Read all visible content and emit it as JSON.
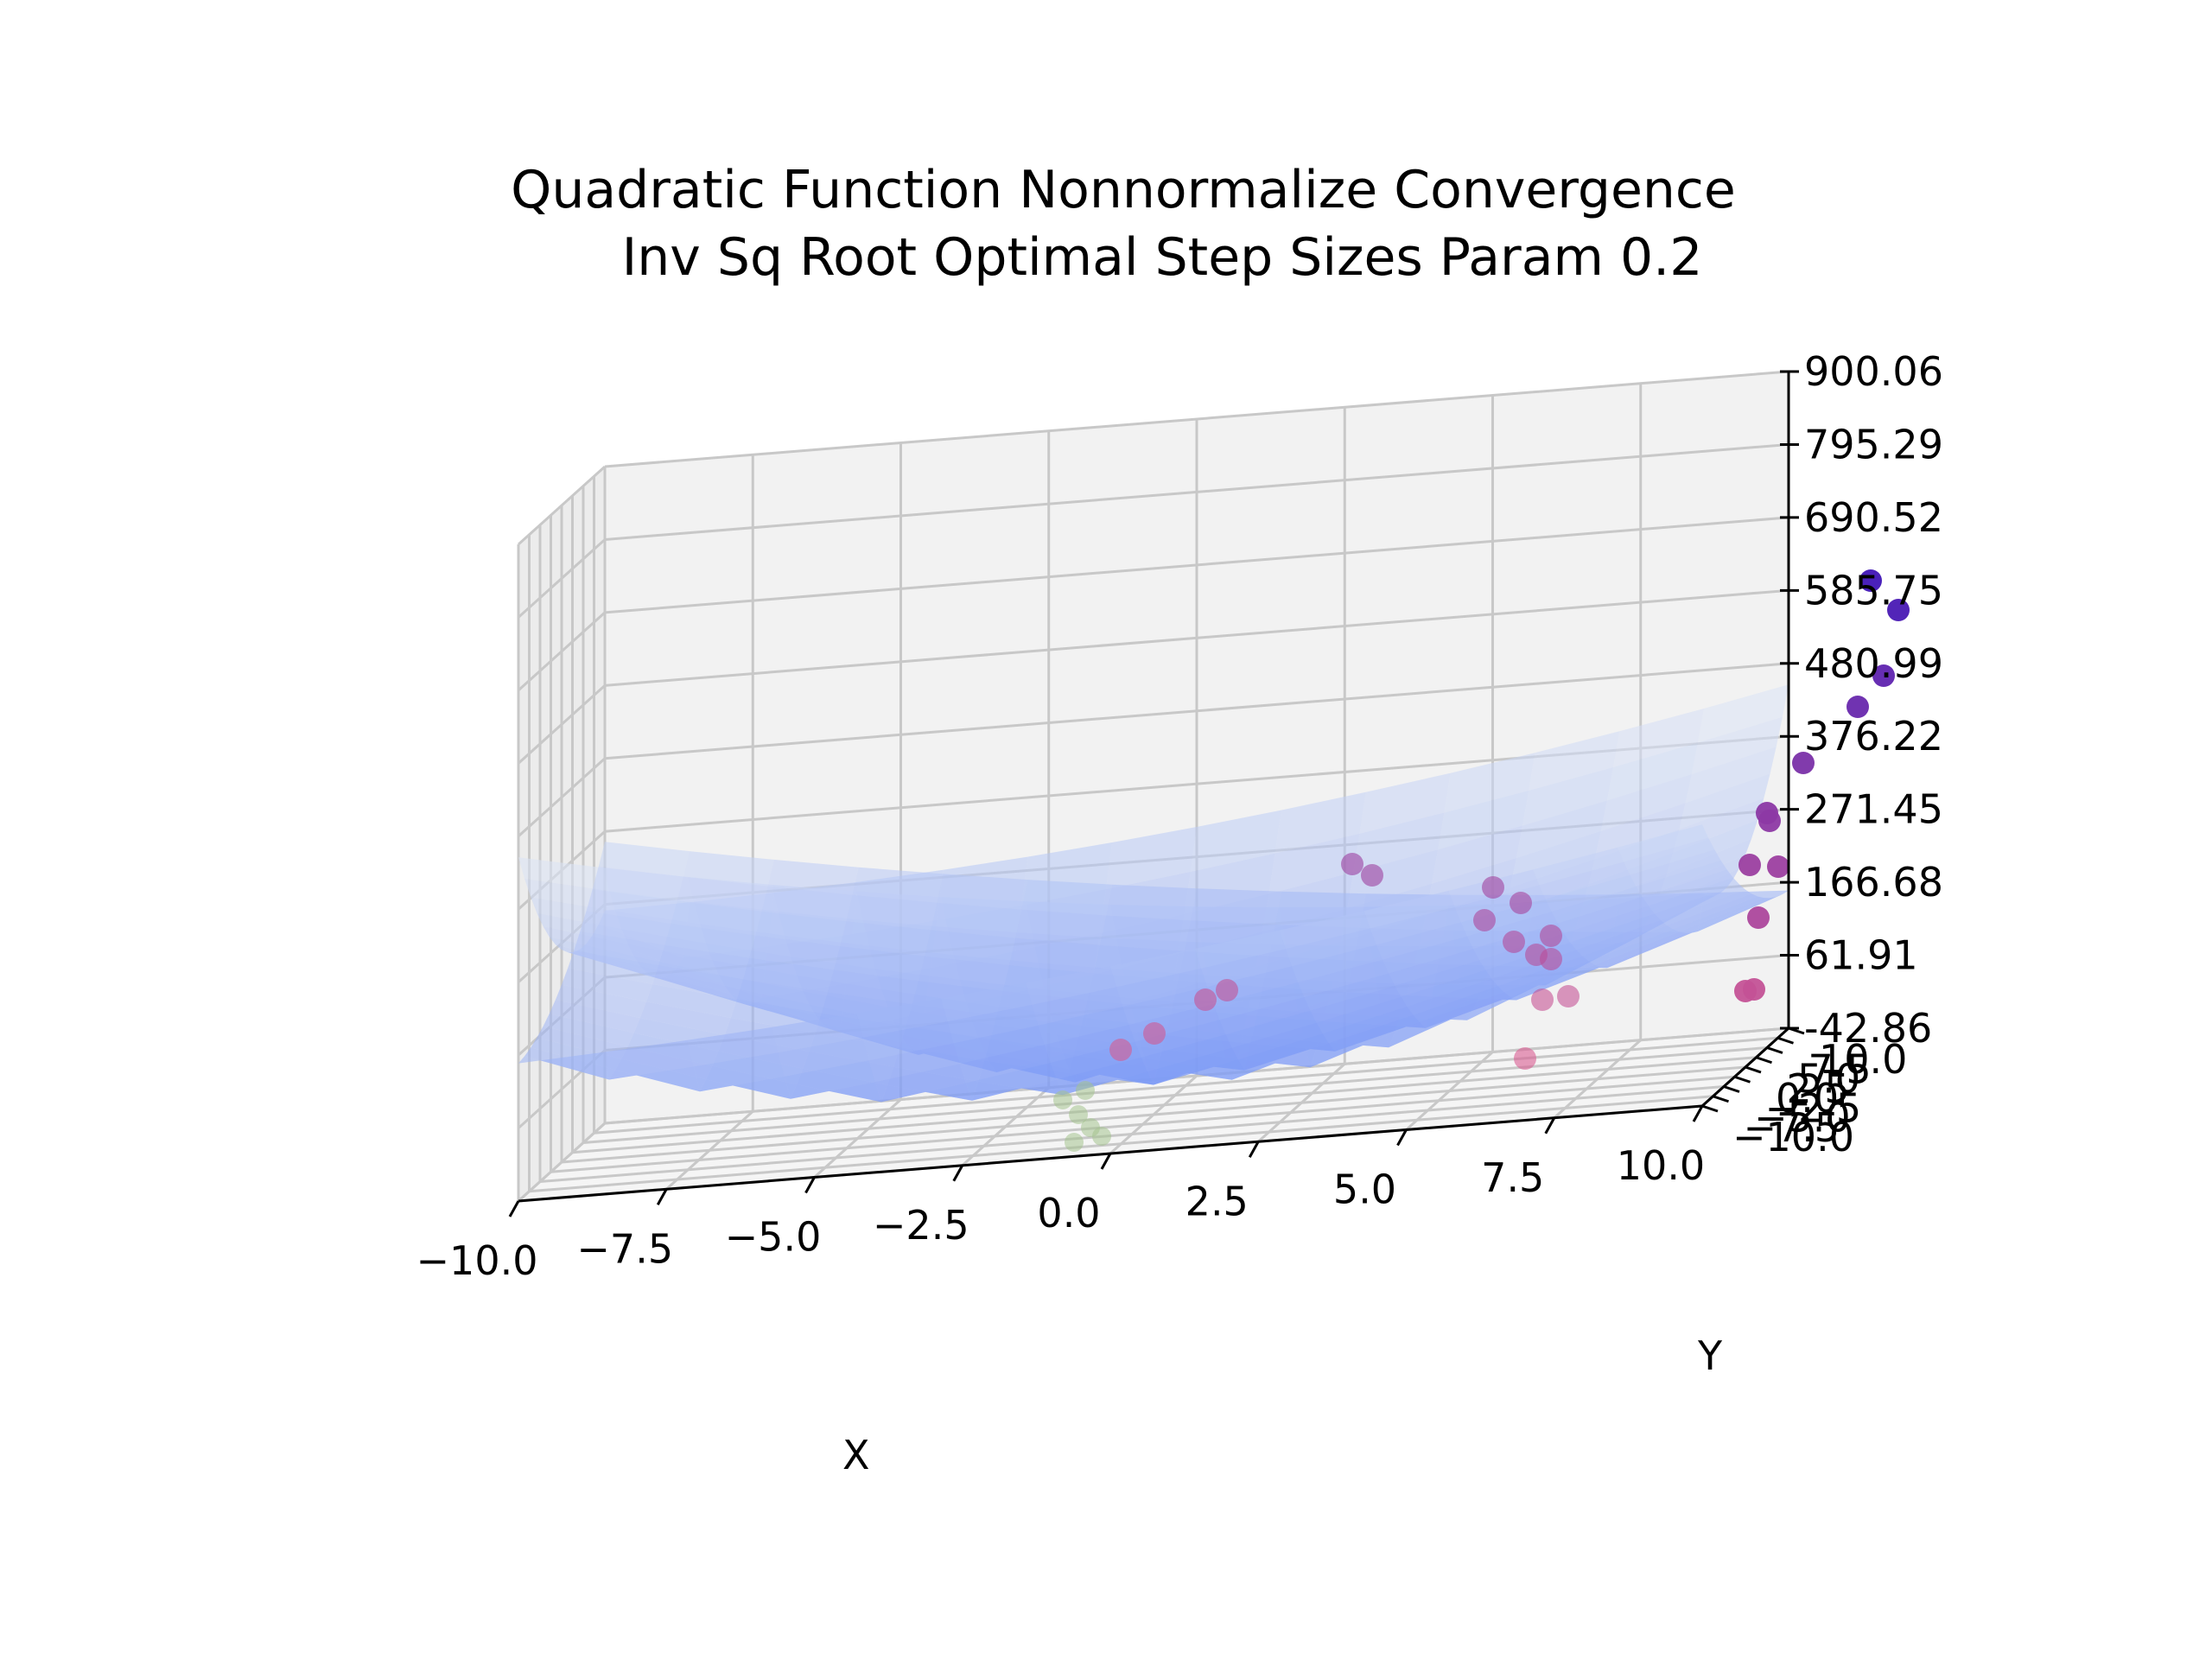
{
  "chart_data": {
    "type": "surface3d",
    "title_lines": [
      "Quadratic Function Nonnormalize Convergence",
      "Inv Sq Root Optimal Step Sizes Param 0.2"
    ],
    "xlabel": "X",
    "ylabel": "Y",
    "zlabel": "",
    "x_ticks": [
      "−10.0",
      "−7.5",
      "−5.0",
      "−2.5",
      "0.0",
      "2.5",
      "5.0",
      "7.5",
      "10.0"
    ],
    "y_ticks": [
      "−10.0",
      "−7.5",
      "−5.0",
      "−2.5",
      "0.0",
      "2.5",
      "5.0",
      "7.5",
      "10.0"
    ],
    "z_ticks": [
      "-42.86",
      "61.91",
      "166.68",
      "271.45",
      "376.22",
      "480.99",
      "585.75",
      "690.52",
      "795.29",
      "900.06"
    ],
    "xlim": [
      -10,
      10
    ],
    "ylim": [
      -10,
      10
    ],
    "zlim": [
      -42.86,
      900.06
    ],
    "grid": true,
    "surface_colormap": "coolwarm",
    "surface_color_low": "#6f8ff5",
    "surface_color_mid": "#dde6f5",
    "surface_color_high": "#d9656e",
    "pane_color": "#f2f2f2",
    "grid_color": "#c8c8c8",
    "point_color_low": "#e05f8f",
    "point_color_high": "#3a12b8",
    "path_color": "#a4c28e"
  }
}
